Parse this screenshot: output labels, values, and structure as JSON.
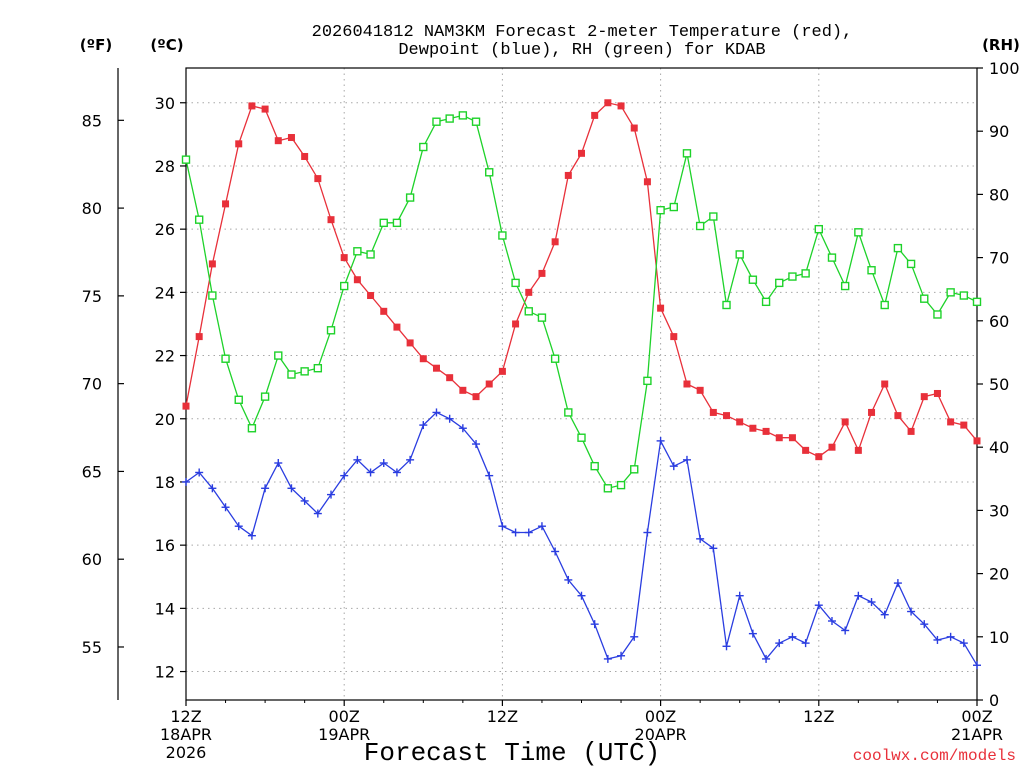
{
  "chart_data": {
    "type": "line",
    "title_line1": "2026041812 NAM3KM Forecast 2-meter Temperature (red),",
    "title_line2": "Dewpoint (blue), RH (green) for KDAB",
    "xlabel": "Forecast Time (UTC)",
    "credit": "coolwx.com/models",
    "axis_labels": {
      "fahrenheit": "(ºF)",
      "celsius": "(ºC)",
      "rh": "(RH)"
    },
    "x_range_hours": [
      0,
      60
    ],
    "x_ticks": [
      {
        "hour": 0,
        "line1": "12Z",
        "line2": "18APR",
        "line3": "2026"
      },
      {
        "hour": 12,
        "line1": "00Z",
        "line2": "19APR",
        "line3": ""
      },
      {
        "hour": 24,
        "line1": "12Z",
        "line2": "",
        "line3": ""
      },
      {
        "hour": 36,
        "line1": "00Z",
        "line2": "20APR",
        "line3": ""
      },
      {
        "hour": 48,
        "line1": "12Z",
        "line2": "",
        "line3": ""
      },
      {
        "hour": 60,
        "line1": "00Z",
        "line2": "21APR",
        "line3": ""
      }
    ],
    "celsius_range": [
      11.1,
      31.1
    ],
    "celsius_ticks": [
      "12",
      "14",
      "16",
      "18",
      "20",
      "22",
      "24",
      "26",
      "28",
      "30"
    ],
    "fahrenheit_ticks": [
      "55",
      "60",
      "65",
      "70",
      "75",
      "80",
      "85"
    ],
    "rh_range": [
      0,
      100
    ],
    "rh_ticks": [
      "0",
      "10",
      "20",
      "30",
      "40",
      "50",
      "60",
      "70",
      "80",
      "90",
      "100"
    ],
    "hours": [
      0,
      1,
      2,
      3,
      4,
      5,
      6,
      7,
      8,
      9,
      10,
      11,
      12,
      13,
      14,
      15,
      16,
      17,
      18,
      19,
      20,
      21,
      22,
      23,
      24,
      25,
      26,
      27,
      28,
      29,
      30,
      31,
      32,
      33,
      34,
      35,
      36,
      37,
      38,
      39,
      40,
      41,
      42,
      43,
      44,
      45,
      46,
      47,
      48,
      49,
      50,
      51,
      52,
      53,
      54,
      55,
      56,
      57,
      58,
      59,
      60
    ],
    "series": [
      {
        "name": "2-meter Temperature",
        "unit": "C",
        "color": "#e8303a",
        "marker": "filled-square",
        "values": [
          20.4,
          22.6,
          24.9,
          26.8,
          28.7,
          29.9,
          29.8,
          28.8,
          28.9,
          28.3,
          27.6,
          26.3,
          25.1,
          24.4,
          23.9,
          23.4,
          22.9,
          22.4,
          21.9,
          21.6,
          21.3,
          20.9,
          20.7,
          21.1,
          21.5,
          23.0,
          24.0,
          24.6,
          25.6,
          27.7,
          28.4,
          29.6,
          30.0,
          29.9,
          29.2,
          27.5,
          23.5,
          22.6,
          21.1,
          20.9,
          20.2,
          20.1,
          19.9,
          19.7,
          19.6,
          19.4,
          19.4,
          19.0,
          18.8,
          19.1,
          19.9,
          19.0,
          20.2,
          21.1,
          20.1,
          19.6,
          20.7,
          20.8,
          19.9,
          19.8,
          19.3
        ]
      },
      {
        "name": "Dewpoint",
        "unit": "C",
        "color": "#2a3de0",
        "marker": "plus",
        "values": [
          18.0,
          18.3,
          17.8,
          17.2,
          16.6,
          16.3,
          17.8,
          18.6,
          17.8,
          17.4,
          17.0,
          17.6,
          18.2,
          18.7,
          18.3,
          18.6,
          18.3,
          18.7,
          19.8,
          20.2,
          20.0,
          19.7,
          19.2,
          18.2,
          16.6,
          16.4,
          16.4,
          16.6,
          15.8,
          14.9,
          14.4,
          13.5,
          12.4,
          12.5,
          13.1,
          16.4,
          19.3,
          18.5,
          18.7,
          16.2,
          15.9,
          12.8,
          14.4,
          13.2,
          12.4,
          12.9,
          13.1,
          12.9,
          14.1,
          13.6,
          13.3,
          14.4,
          14.2,
          13.8,
          14.8,
          13.9,
          13.5,
          13.0,
          13.1,
          12.9,
          12.2
        ]
      },
      {
        "name": "RH",
        "unit": "%",
        "color": "#1ed22a",
        "marker": "open-square",
        "values": [
          85.5,
          76,
          64,
          54,
          47.5,
          43,
          48,
          54.5,
          51.5,
          52,
          52.5,
          58.5,
          65.5,
          71,
          70.5,
          75.5,
          75.5,
          79.5,
          87.5,
          91.5,
          92,
          92.5,
          91.5,
          83.5,
          73.5,
          66,
          61.5,
          60.5,
          54,
          45.5,
          41.5,
          37,
          33.5,
          34,
          36.5,
          50.5,
          77.5,
          78,
          86.5,
          75,
          76.5,
          62.5,
          70.5,
          66.5,
          63,
          66,
          67,
          67.5,
          74.5,
          70,
          65.5,
          74,
          68,
          62.5,
          71.5,
          69,
          63.5,
          61,
          64.5,
          64,
          63
        ]
      }
    ]
  }
}
